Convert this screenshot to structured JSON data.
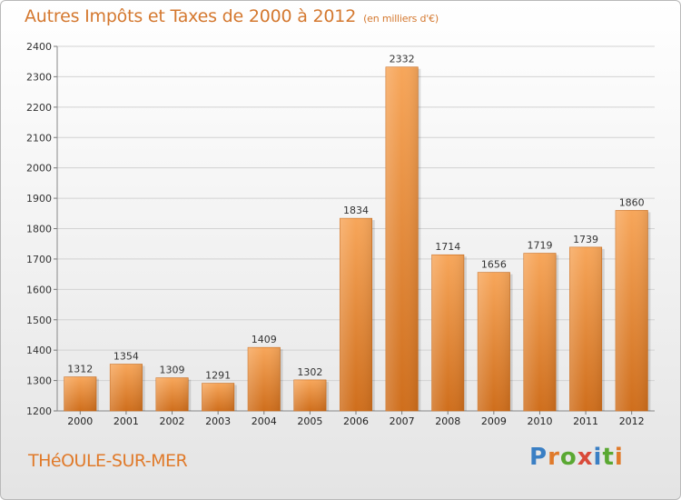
{
  "title": "Autres Impôts et Taxes de 2000 à 2012",
  "subtitle": "(en milliers d'€)",
  "town": "THéOULE-SUR-MER",
  "logo": {
    "letters": [
      "P",
      "r",
      "o",
      "x",
      "i",
      "t",
      "i"
    ],
    "colors": [
      "#3a7fc4",
      "#e07a2a",
      "#5aa832",
      "#d94a3a",
      "#3a7fc4",
      "#5aa832",
      "#e07a2a"
    ]
  },
  "colors": {
    "bar_top": "#f7a65a",
    "bar_bottom": "#cf6e1c",
    "title": "#d4782f"
  },
  "chart_data": {
    "type": "bar",
    "categories": [
      "2000",
      "2001",
      "2002",
      "2003",
      "2004",
      "2005",
      "2006",
      "2007",
      "2008",
      "2009",
      "2010",
      "2011",
      "2012"
    ],
    "values": [
      1312,
      1354,
      1309,
      1291,
      1409,
      1302,
      1834,
      2332,
      1714,
      1656,
      1719,
      1739,
      1860
    ],
    "title": "Autres Impôts et Taxes de 2000 à 2012",
    "subtitle": "(en milliers d'€)",
    "xlabel": "",
    "ylabel": "",
    "ylim": [
      1200,
      2400
    ],
    "yticks": [
      1200,
      1300,
      1400,
      1500,
      1600,
      1700,
      1800,
      1900,
      2000,
      2100,
      2200,
      2300,
      2400
    ],
    "grid": true,
    "legend": "none",
    "data_labels": true
  }
}
